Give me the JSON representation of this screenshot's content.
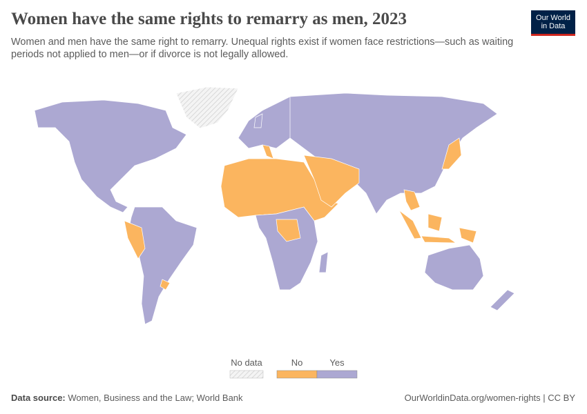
{
  "header": {
    "title": "Women have the same rights to remarry as men, 2023",
    "subtitle": "Women and men have the same right to remarry. Unequal rights exist if women face restrictions—such as waiting periods not applied to men—or if divorce is not legally allowed.",
    "logo": [
      "Our World",
      "in Data"
    ]
  },
  "legend": {
    "items": [
      {
        "label": "No data"
      },
      {
        "label": "No",
        "color": "#fbb55f"
      },
      {
        "label": "Yes",
        "color": "#aca8d2"
      }
    ]
  },
  "footer": {
    "source_label": "Data source:",
    "source": "Women, Business and the Law; World Bank",
    "url": "OurWorldinData.org/women-rights | CC BY"
  }
}
